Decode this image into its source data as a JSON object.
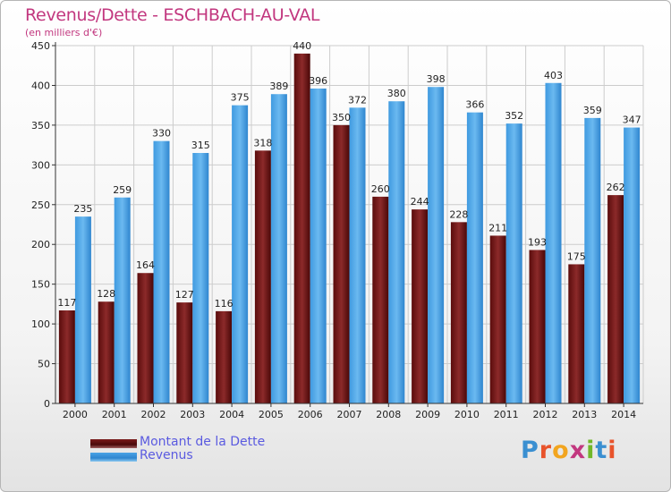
{
  "title": "Revenus/Dette - ESCHBACH-AU-VAL",
  "subtitle": "(en milliers d'€)",
  "logo": {
    "letters": [
      "P",
      "r",
      "o",
      "x",
      "i",
      "t",
      "i"
    ],
    "colors": [
      "#3a8fd1",
      "#e8532b",
      "#f2a51f",
      "#c2377f",
      "#71b72a",
      "#3a8fd1",
      "#e8532b"
    ]
  },
  "legend": [
    {
      "label": "Montant de la Dette",
      "color": "#7a1a1a"
    },
    {
      "label": "Revenus",
      "color": "#4aa3e6"
    }
  ],
  "chart_data": {
    "type": "bar",
    "title": "Revenus/Dette - ESCHBACH-AU-VAL",
    "ylabel": "(en milliers d'€)",
    "ylim": [
      0,
      450
    ],
    "yticks": [
      0,
      50,
      100,
      150,
      200,
      250,
      300,
      350,
      400,
      450
    ],
    "grid": true,
    "categories": [
      "2000",
      "2001",
      "2002",
      "2003",
      "2004",
      "2005",
      "2006",
      "2007",
      "2008",
      "2009",
      "2010",
      "2011",
      "2012",
      "2013",
      "2014"
    ],
    "series": [
      {
        "name": "Montant de la Dette",
        "color": "#7a1a1a",
        "values": [
          117,
          128,
          164,
          127,
          116,
          318,
          440,
          350,
          260,
          244,
          228,
          211,
          193,
          175,
          262
        ]
      },
      {
        "name": "Revenus",
        "color": "#4aa3e6",
        "values": [
          235,
          259,
          330,
          315,
          375,
          389,
          396,
          372,
          380,
          398,
          366,
          352,
          403,
          359,
          347
        ]
      }
    ]
  }
}
